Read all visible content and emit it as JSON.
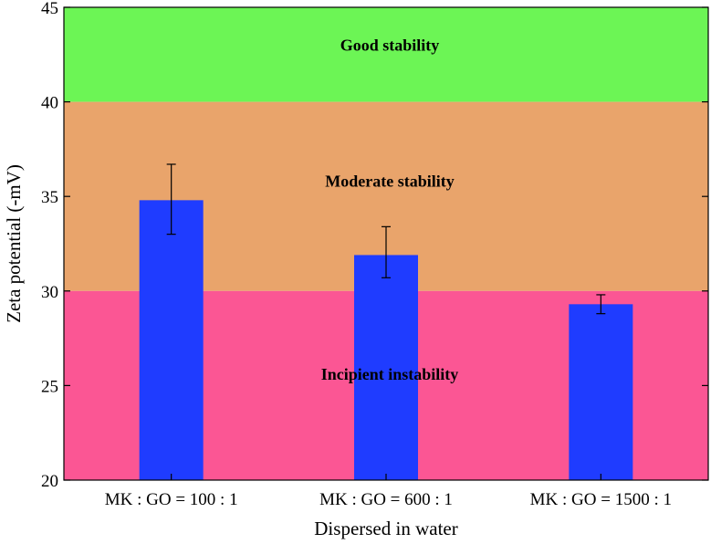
{
  "chart_data": {
    "type": "bar",
    "title": "",
    "xlabel": "Dispersed in water",
    "ylabel": "Zeta potential (-mV)",
    "ylim": [
      20,
      45
    ],
    "yticks": [
      20,
      25,
      30,
      35,
      40,
      45
    ],
    "categories": [
      "MK : GO = 100 : 1",
      "MK : GO = 600 : 1",
      "MK : GO = 1500 : 1"
    ],
    "values": [
      34.8,
      31.9,
      29.3
    ],
    "errors": [
      {
        "low": 33.0,
        "high": 36.7
      },
      {
        "low": 30.7,
        "high": 33.4
      },
      {
        "low": 28.8,
        "high": 29.8
      }
    ],
    "bar_color": "#1f3cff",
    "zones": [
      {
        "label": "Good stability",
        "from": 40,
        "to": 45,
        "color": "#6cf555",
        "label_y": 43.0
      },
      {
        "label": "Moderate stability",
        "from": 30,
        "to": 40,
        "color": "#e9a46b",
        "label_y": 35.8
      },
      {
        "label": "Incipient instability",
        "from": 20,
        "to": 30,
        "color": "#fb5694",
        "label_y": 25.6
      }
    ],
    "grid": false,
    "legend": "none"
  }
}
